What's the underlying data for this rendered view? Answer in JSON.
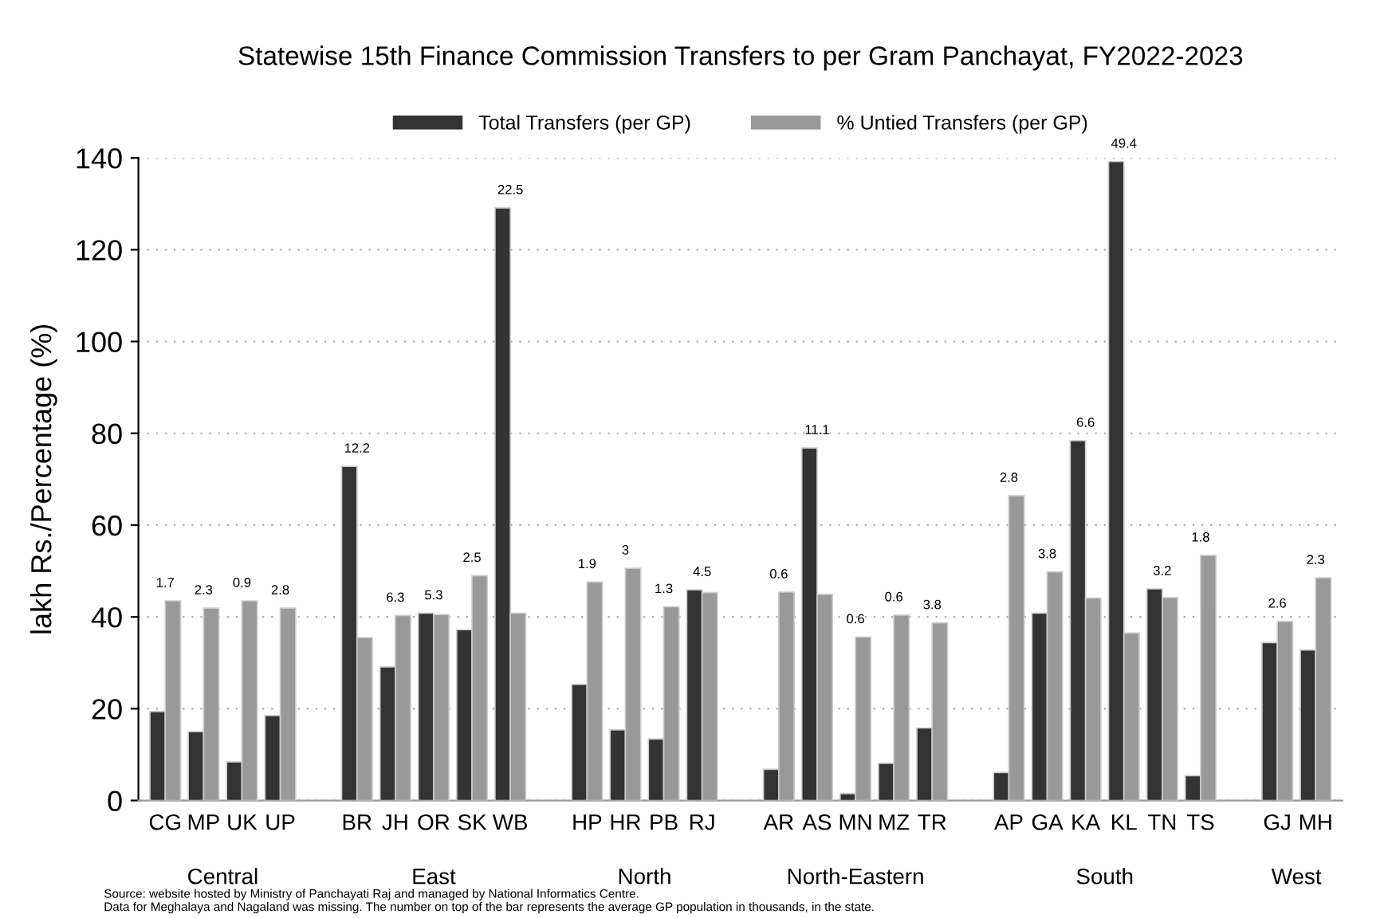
{
  "chart_data": {
    "type": "bar",
    "title": "Statewise 15th Finance Commission Transfers to per Gram Panchayat, FY2022-2023",
    "ylabel": "lakh Rs./Percentage (%)",
    "categories": [
      "CG",
      "MP",
      "UK",
      "UP",
      null,
      "BR",
      "JH",
      "OR",
      "SK",
      "WB",
      null,
      "HP",
      "HR",
      "PB",
      "RJ",
      null,
      "AR",
      "AS",
      "MN",
      "MZ",
      "TR",
      null,
      "AP",
      "GA",
      "KA",
      "KL",
      "TN",
      "TS",
      null,
      "GJ",
      "MH"
    ],
    "series": [
      {
        "name": "Total Transfers (per GP)",
        "color": "#333333",
        "values": [
          19.4,
          15.0,
          8.4,
          18.5,
          null,
          72.8,
          29.1,
          40.8,
          37.2,
          129.1,
          null,
          25.3,
          15.4,
          13.4,
          45.9,
          null,
          6.8,
          76.8,
          1.5,
          8.1,
          15.8,
          null,
          6.1,
          40.8,
          78.4,
          139.2,
          46.1,
          5.4,
          null,
          34.4,
          32.8
        ]
      },
      {
        "name": "% Untied Transfers (per GP)",
        "color": "#999999",
        "values": [
          43.5,
          41.9,
          43.5,
          41.9,
          null,
          35.5,
          40.3,
          40.5,
          49.0,
          40.8,
          null,
          47.6,
          50.6,
          42.2,
          45.3,
          null,
          45.4,
          44.9,
          35.6,
          40.4,
          38.7,
          null,
          66.4,
          49.8,
          44.1,
          36.5,
          44.2,
          53.4,
          null,
          39.0,
          48.5
        ]
      }
    ],
    "ylim": [
      0,
      140
    ],
    "yticks": [
      0,
      20,
      40,
      60,
      80,
      100,
      120,
      140
    ],
    "grid": "y",
    "legend": "top",
    "annotations": [
      {
        "text": "1.7",
        "x": "CG",
        "y": 43.5
      },
      {
        "text": "2.3",
        "x": "MP",
        "y": 41.9
      },
      {
        "text": "0.9",
        "x": "UK",
        "y": 43.5
      },
      {
        "text": "2.8",
        "x": "UP",
        "y": 41.9
      },
      {
        "text": "12.2",
        "x": "BR",
        "y": 72.8
      },
      {
        "text": "6.3",
        "x": "JH",
        "y": 40.3
      },
      {
        "text": "5.3",
        "x": "OR",
        "y": 40.8
      },
      {
        "text": "2.5",
        "x": "SK",
        "y": 49.0
      },
      {
        "text": "22.5",
        "x": "WB",
        "y": 129.1
      },
      {
        "text": "1.9",
        "x": "HP",
        "y": 47.6
      },
      {
        "text": "3",
        "x": "HR",
        "y": 50.6
      },
      {
        "text": "1.3",
        "x": "PB",
        "y": 42.2
      },
      {
        "text": "4.5",
        "x": "RJ",
        "y": 45.9
      },
      {
        "text": "0.6",
        "x": "AR",
        "y": 45.4
      },
      {
        "text": "11.1",
        "x": "AS",
        "y": 76.8
      },
      {
        "text": "0.6",
        "x": "MN",
        "y": 35.6
      },
      {
        "text": "0.6",
        "x": "MZ",
        "y": 40.4
      },
      {
        "text": "3.8",
        "x": "TR",
        "y": 38.7
      },
      {
        "text": "2.8",
        "x": "AP",
        "y": 66.4
      },
      {
        "text": "3.8",
        "x": "GA",
        "y": 49.8
      },
      {
        "text": "6.6",
        "x": "KA",
        "y": 78.4
      },
      {
        "text": "49.4",
        "x": "KL",
        "y": 139.2
      },
      {
        "text": "3.2",
        "x": "TN",
        "y": 46.1
      },
      {
        "text": "1.8",
        "x": "TS",
        "y": 53.4
      },
      {
        "text": "2.6",
        "x": "GJ",
        "y": 39.0
      },
      {
        "text": "2.3",
        "x": "MH",
        "y": 48.5
      },
      "Central",
      "East",
      "North",
      "North-Eastern",
      "South",
      "West",
      "Source: website hosted by Ministry of Panchayati Raj and managed by National Informatics Centre.\nData for Meghalaya and Nagaland was missing. The number on top of the bar represents the average GP population in thousands, in the state."
    ]
  }
}
